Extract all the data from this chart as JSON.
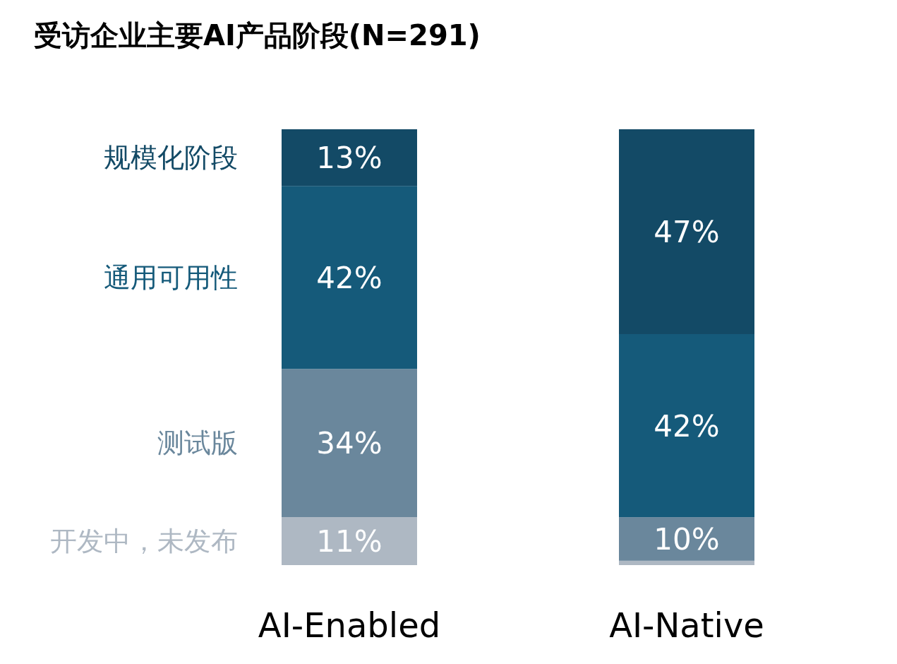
{
  "chart_data": {
    "type": "bar",
    "stacked": true,
    "title": "受访企业主要AI产品阶段(N=291)",
    "categories": [
      "AI-Enabled",
      "AI-Native"
    ],
    "ylim": [
      0,
      100
    ],
    "tick_labels": "x",
    "series": [
      {
        "name": "开发中，未发布",
        "color": "#aeb8c3",
        "values": [
          11,
          1
        ],
        "value_labels": [
          "11%",
          null
        ]
      },
      {
        "name": "测试版",
        "color": "#6a879c",
        "values": [
          34,
          10
        ],
        "value_labels": [
          "34%",
          "10%"
        ]
      },
      {
        "name": "通用可用性",
        "color": "#155a7a",
        "values": [
          42,
          42
        ],
        "value_labels": [
          "42%",
          "42%"
        ]
      },
      {
        "name": "规模化阶段",
        "color": "#134a66",
        "values": [
          13,
          47
        ],
        "value_labels": [
          "13%",
          "47%"
        ]
      }
    ]
  }
}
